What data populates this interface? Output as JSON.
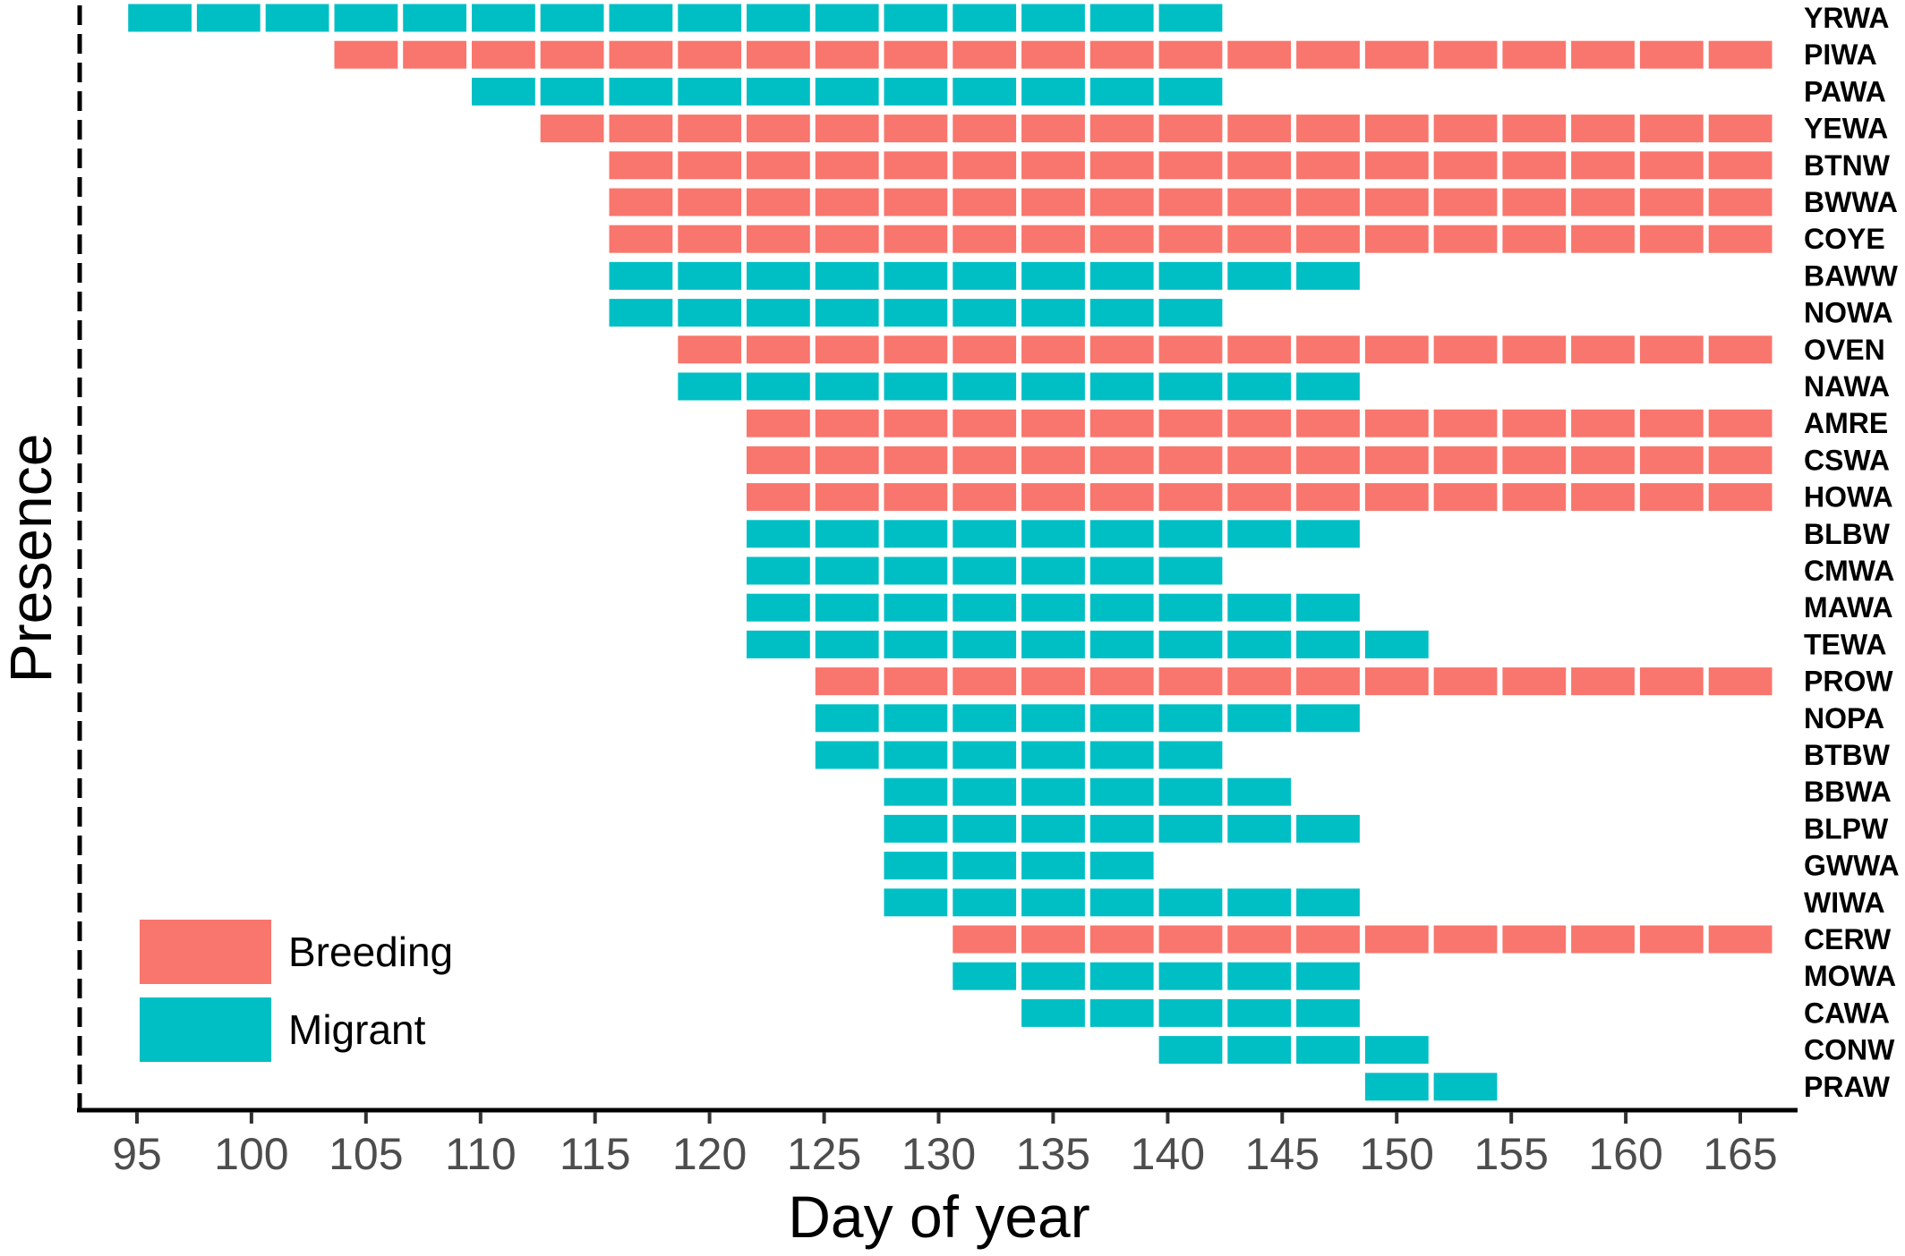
{
  "chart_data": {
    "type": "bar",
    "xlabel": "Day of year",
    "ylabel": "Presence",
    "xlim": [
      92.5,
      167.5
    ],
    "x_ticks": [
      95,
      100,
      105,
      110,
      115,
      120,
      125,
      130,
      135,
      140,
      145,
      150,
      155,
      160,
      165
    ],
    "segment_days": 3,
    "colors": {
      "Breeding": "#F8766D",
      "Migrant": "#00BFC4"
    },
    "legend": {
      "position": "bottom-left",
      "entries": [
        "Breeding",
        "Migrant"
      ]
    },
    "grid": false,
    "series": [
      {
        "species": "YRWA",
        "status": "Migrant",
        "start": 95,
        "end": 143
      },
      {
        "species": "PIWA",
        "status": "Breeding",
        "start": 104,
        "end": 167
      },
      {
        "species": "PAWA",
        "status": "Migrant",
        "start": 110,
        "end": 143
      },
      {
        "species": "YEWA",
        "status": "Breeding",
        "start": 113,
        "end": 167
      },
      {
        "species": "BTNW",
        "status": "Breeding",
        "start": 116,
        "end": 167
      },
      {
        "species": "BWWA",
        "status": "Breeding",
        "start": 116,
        "end": 167
      },
      {
        "species": "COYE",
        "status": "Breeding",
        "start": 116,
        "end": 167
      },
      {
        "species": "BAWW",
        "status": "Migrant",
        "start": 116,
        "end": 149
      },
      {
        "species": "NOWA",
        "status": "Migrant",
        "start": 116,
        "end": 143
      },
      {
        "species": "OVEN",
        "status": "Breeding",
        "start": 119,
        "end": 167
      },
      {
        "species": "NAWA",
        "status": "Migrant",
        "start": 119,
        "end": 149
      },
      {
        "species": "AMRE",
        "status": "Breeding",
        "start": 122,
        "end": 167
      },
      {
        "species": "CSWA",
        "status": "Breeding",
        "start": 122,
        "end": 167
      },
      {
        "species": "HOWA",
        "status": "Breeding",
        "start": 122,
        "end": 167
      },
      {
        "species": "BLBW",
        "status": "Migrant",
        "start": 122,
        "end": 149
      },
      {
        "species": "CMWA",
        "status": "Migrant",
        "start": 122,
        "end": 143
      },
      {
        "species": "MAWA",
        "status": "Migrant",
        "start": 122,
        "end": 149
      },
      {
        "species": "TEWA",
        "status": "Migrant",
        "start": 122,
        "end": 152
      },
      {
        "species": "PROW",
        "status": "Breeding",
        "start": 125,
        "end": 167
      },
      {
        "species": "NOPA",
        "status": "Migrant",
        "start": 125,
        "end": 149
      },
      {
        "species": "BTBW",
        "status": "Migrant",
        "start": 125,
        "end": 143
      },
      {
        "species": "BBWA",
        "status": "Migrant",
        "start": 128,
        "end": 146
      },
      {
        "species": "BLPW",
        "status": "Migrant",
        "start": 128,
        "end": 149
      },
      {
        "species": "GWWA",
        "status": "Migrant",
        "start": 128,
        "end": 140
      },
      {
        "species": "WIWA",
        "status": "Migrant",
        "start": 128,
        "end": 149
      },
      {
        "species": "CERW",
        "status": "Breeding",
        "start": 131,
        "end": 167
      },
      {
        "species": "MOWA",
        "status": "Migrant",
        "start": 131,
        "end": 149
      },
      {
        "species": "CAWA",
        "status": "Migrant",
        "start": 134,
        "end": 149
      },
      {
        "species": "CONW",
        "status": "Migrant",
        "start": 140,
        "end": 152
      },
      {
        "species": "PRAW",
        "status": "Migrant",
        "start": 149,
        "end": 155
      }
    ]
  }
}
